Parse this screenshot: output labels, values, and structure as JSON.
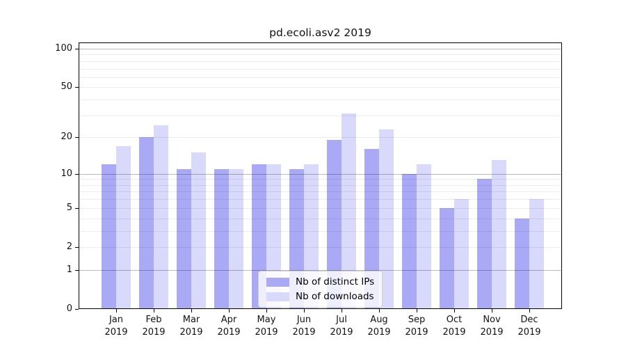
{
  "chart_data": {
    "type": "bar",
    "title": "pd.ecoli.asv2 2019",
    "categories": [
      "Jan",
      "Feb",
      "Mar",
      "Apr",
      "May",
      "Jun",
      "Jul",
      "Aug",
      "Sep",
      "Oct",
      "Nov",
      "Dec"
    ],
    "category_year": "2019",
    "series": [
      {
        "name": "Nb of distinct IPs",
        "color": "#a9a9f6",
        "values": [
          12,
          20,
          11,
          11,
          12,
          11,
          19,
          16,
          10,
          5,
          9,
          4
        ]
      },
      {
        "name": "Nb of downloads",
        "color": "#d9d9fb",
        "values": [
          17,
          25,
          15,
          11,
          12,
          12,
          31,
          23,
          12,
          6,
          13,
          6
        ]
      }
    ],
    "xlabel": "",
    "ylabel": "",
    "y_scale": "log1p",
    "ylim": [
      0,
      100
    ],
    "y_ticks": [
      0,
      1,
      2,
      5,
      10,
      20,
      50,
      100
    ],
    "y_gridlines_minor": [
      2,
      3,
      4,
      5,
      6,
      7,
      8,
      9,
      20,
      30,
      40,
      50,
      60,
      70,
      80,
      90
    ],
    "y_gridlines_major": [
      1,
      10,
      100
    ],
    "grid": true,
    "legend_position": "lower center"
  }
}
